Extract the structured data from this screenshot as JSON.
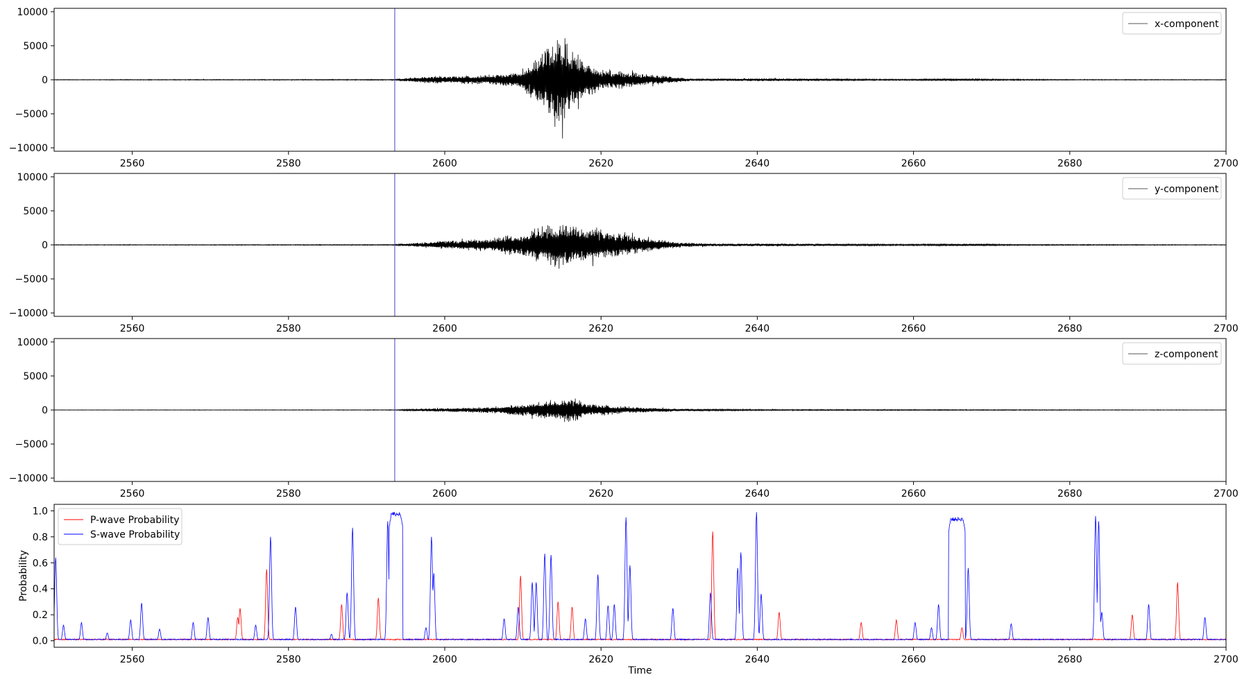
{
  "chart_data": [
    {
      "type": "line",
      "xlim": [
        2550,
        2700
      ],
      "ylim": [
        -10500,
        10500
      ],
      "xticks": [
        2560,
        2580,
        2600,
        2620,
        2640,
        2660,
        2680,
        2700
      ],
      "yticks": [
        -10000,
        -5000,
        0,
        5000,
        10000
      ],
      "ytick_labels": [
        "−10000",
        "−5000",
        "0",
        "5000",
        "10000"
      ],
      "xlabel": "",
      "ylabel": "",
      "legend_loc": "upper right",
      "vline_x": 2593.6,
      "series": [
        {
          "name": "x-component",
          "color": "#000000"
        }
      ],
      "envelope": [
        [
          2550,
          60
        ],
        [
          2593.5,
          90
        ],
        [
          2597,
          700
        ],
        [
          2605,
          900
        ],
        [
          2610,
          1700
        ],
        [
          2612,
          5000
        ],
        [
          2614,
          8000
        ],
        [
          2615,
          9500
        ],
        [
          2616,
          6800
        ],
        [
          2618,
          3800
        ],
        [
          2620,
          2000
        ],
        [
          2623,
          1700
        ],
        [
          2626,
          1200
        ],
        [
          2630,
          500
        ],
        [
          2632,
          150
        ],
        [
          2637,
          250
        ],
        [
          2642,
          320
        ],
        [
          2650,
          200
        ],
        [
          2655,
          130
        ],
        [
          2660,
          140
        ],
        [
          2665,
          220
        ],
        [
          2670,
          150
        ],
        [
          2680,
          80
        ],
        [
          2700,
          60
        ]
      ]
    },
    {
      "type": "line",
      "xlim": [
        2550,
        2700
      ],
      "ylim": [
        -10500,
        10500
      ],
      "xticks": [
        2560,
        2580,
        2600,
        2620,
        2640,
        2660,
        2680,
        2700
      ],
      "yticks": [
        -10000,
        -5000,
        0,
        5000,
        10000
      ],
      "ytick_labels": [
        "−10000",
        "−5000",
        "0",
        "5000",
        "10000"
      ],
      "xlabel": "",
      "ylabel": "",
      "legend_loc": "upper right",
      "vline_x": 2593.6,
      "series": [
        {
          "name": "y-component",
          "color": "#000000"
        }
      ],
      "envelope": [
        [
          2550,
          60
        ],
        [
          2593.5,
          90
        ],
        [
          2597,
          500
        ],
        [
          2602,
          1000
        ],
        [
          2606,
          1400
        ],
        [
          2610,
          2500
        ],
        [
          2613,
          3900
        ],
        [
          2615,
          4800
        ],
        [
          2617,
          3800
        ],
        [
          2620,
          2900
        ],
        [
          2623,
          2200
        ],
        [
          2626,
          1400
        ],
        [
          2630,
          500
        ],
        [
          2635,
          250
        ],
        [
          2642,
          300
        ],
        [
          2650,
          200
        ],
        [
          2660,
          150
        ],
        [
          2667,
          250
        ],
        [
          2672,
          120
        ],
        [
          2700,
          60
        ]
      ]
    },
    {
      "type": "line",
      "xlim": [
        2550,
        2700
      ],
      "ylim": [
        -10500,
        10500
      ],
      "xticks": [
        2560,
        2580,
        2600,
        2620,
        2640,
        2660,
        2680,
        2700
      ],
      "yticks": [
        -10000,
        -5000,
        0,
        5000,
        10000
      ],
      "ytick_labels": [
        "−10000",
        "−5000",
        "0",
        "5000",
        "10000"
      ],
      "xlabel": "",
      "ylabel": "",
      "legend_loc": "upper right",
      "vline_x": 2593.6,
      "series": [
        {
          "name": "z-component",
          "color": "#000000"
        }
      ],
      "envelope": [
        [
          2550,
          40
        ],
        [
          2593.5,
          60
        ],
        [
          2597,
          300
        ],
        [
          2603,
          500
        ],
        [
          2607,
          700
        ],
        [
          2611,
          1400
        ],
        [
          2614,
          2100
        ],
        [
          2616,
          2700
        ],
        [
          2618,
          1500
        ],
        [
          2622,
          800
        ],
        [
          2626,
          500
        ],
        [
          2630,
          250
        ],
        [
          2640,
          120
        ],
        [
          2660,
          100
        ],
        [
          2700,
          40
        ]
      ]
    },
    {
      "type": "line",
      "xlim": [
        2550,
        2700
      ],
      "ylim": [
        -0.05,
        1.05
      ],
      "xticks": [
        2560,
        2580,
        2600,
        2620,
        2640,
        2660,
        2680,
        2700
      ],
      "yticks": [
        0.0,
        0.2,
        0.4,
        0.6,
        0.8,
        1.0
      ],
      "ytick_labels": [
        "0.0",
        "0.2",
        "0.4",
        "0.6",
        "0.8",
        "1.0"
      ],
      "xlabel": "Time",
      "ylabel": "Probability",
      "legend_loc": "upper left",
      "series": [
        {
          "name": "P-wave Probability",
          "color": "#ff0000",
          "peaks": [
            [
              2573.5,
              0.18
            ],
            [
              2573.8,
              0.25
            ],
            [
              2577.2,
              0.55
            ],
            [
              2586.8,
              0.28
            ],
            [
              2591.5,
              0.33
            ],
            [
              2609.7,
              0.5
            ],
            [
              2614.5,
              0.3
            ],
            [
              2616.3,
              0.26
            ],
            [
              2634.3,
              0.84
            ],
            [
              2642.8,
              0.22
            ],
            [
              2653.3,
              0.14
            ],
            [
              2657.8,
              0.16
            ],
            [
              2666.2,
              0.1
            ],
            [
              2688,
              0.2
            ],
            [
              2693.8,
              0.45
            ]
          ]
        },
        {
          "name": "S-wave Probability",
          "color": "#0000ff",
          "peaks": [
            [
              2550.2,
              0.64
            ],
            [
              2551.2,
              0.12
            ],
            [
              2553.5,
              0.14
            ],
            [
              2556.8,
              0.06
            ],
            [
              2559.8,
              0.16
            ],
            [
              2561.2,
              0.29
            ],
            [
              2563.5,
              0.09
            ],
            [
              2567.8,
              0.14
            ],
            [
              2569.7,
              0.18
            ],
            [
              2575.8,
              0.12
            ],
            [
              2577.7,
              0.8
            ],
            [
              2580.9,
              0.26
            ],
            [
              2585.5,
              0.05
            ],
            [
              2587.5,
              0.37
            ],
            [
              2588.2,
              0.87
            ],
            [
              2592.7,
              0.92
            ],
            [
              2594.3,
              0.85
            ],
            [
              2597.6,
              0.1
            ],
            [
              2598.3,
              0.8
            ],
            [
              2598.6,
              0.52
            ],
            [
              2607.6,
              0.17
            ],
            [
              2609.4,
              0.26
            ],
            [
              2611.2,
              0.45
            ],
            [
              2611.7,
              0.45
            ],
            [
              2612.8,
              0.67
            ],
            [
              2613.6,
              0.66
            ],
            [
              2618,
              0.17
            ],
            [
              2619.6,
              0.51
            ],
            [
              2620.9,
              0.27
            ],
            [
              2621.7,
              0.28
            ],
            [
              2623.2,
              0.95
            ],
            [
              2623.7,
              0.58
            ],
            [
              2629.2,
              0.25
            ],
            [
              2634,
              0.37
            ],
            [
              2637.5,
              0.56
            ],
            [
              2637.9,
              0.68
            ],
            [
              2639.9,
              0.99
            ],
            [
              2640.5,
              0.36
            ],
            [
              2660.2,
              0.14
            ],
            [
              2662.3,
              0.1
            ],
            [
              2663.2,
              0.28
            ],
            [
              2667,
              0.56
            ],
            [
              2672.5,
              0.13
            ],
            [
              2683.3,
              0.96
            ],
            [
              2683.7,
              0.92
            ],
            [
              2684.1,
              0.22
            ],
            [
              2690.1,
              0.28
            ],
            [
              2697.3,
              0.18
            ]
          ],
          "plateaus": [
            [
              2592.9,
              2594.6,
              0.99
            ],
            [
              2664.5,
              2666.6,
              0.95
            ]
          ]
        }
      ]
    }
  ]
}
